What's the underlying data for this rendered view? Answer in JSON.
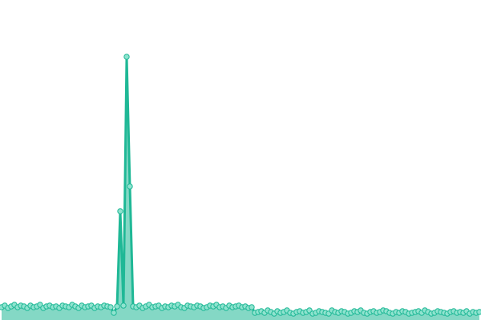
{
  "chart_data": {
    "type": "area",
    "color": "#1fb896",
    "values": [
      16,
      18,
      15,
      17,
      19,
      16,
      18,
      17,
      15,
      18,
      16,
      17,
      19,
      15,
      17,
      18,
      16,
      17,
      15,
      18,
      17,
      16,
      19,
      17,
      15,
      18,
      16,
      17,
      18,
      15,
      17,
      16,
      18,
      17,
      16,
      9,
      17,
      136,
      18,
      329,
      167,
      17,
      16,
      18,
      15,
      17,
      19,
      16,
      17,
      18,
      15,
      17,
      16,
      18,
      17,
      19,
      16,
      15,
      18,
      17,
      16,
      18,
      17,
      15,
      16,
      18,
      17,
      19,
      16,
      17,
      15,
      18,
      16,
      17,
      18,
      16,
      17,
      15,
      16,
      9,
      10,
      11,
      9,
      12,
      10,
      8,
      11,
      9,
      10,
      12,
      9,
      8,
      10,
      11,
      9,
      10,
      12,
      8,
      9,
      11,
      10,
      9,
      8,
      12,
      10,
      9,
      11,
      10,
      8,
      9,
      11,
      10,
      12,
      9,
      8,
      10,
      11,
      9,
      10,
      12,
      11,
      9,
      8,
      10,
      9,
      11,
      10,
      8,
      9,
      10,
      11,
      9,
      12,
      10,
      8,
      9,
      11,
      10,
      9,
      8,
      10,
      11,
      9,
      10,
      9,
      11,
      8,
      10,
      9,
      10
    ],
    "ylim": [
      0,
      400
    ]
  }
}
